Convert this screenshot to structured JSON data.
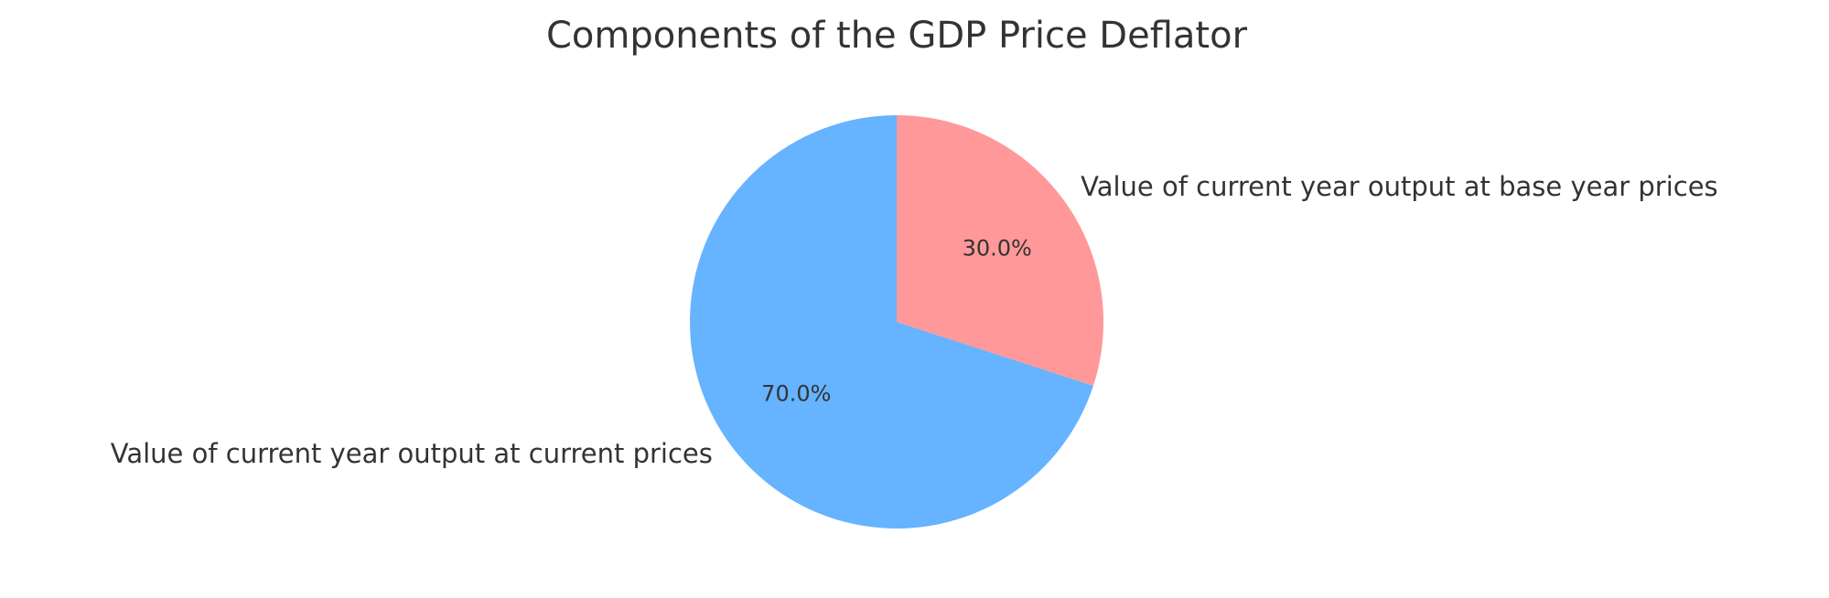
{
  "chart_data": {
    "type": "pie",
    "title": "Components of the GDP Price Deflator",
    "start_angle_deg": 90,
    "direction": "counterclockwise",
    "slices": [
      {
        "label": "Value of current year output at current prices",
        "value": 70.0,
        "pct_label": "70.0%",
        "color": "#66b3ff"
      },
      {
        "label": "Value of current year output at base year prices",
        "value": 30.0,
        "pct_label": "30.0%",
        "color": "#ff9999"
      }
    ]
  }
}
